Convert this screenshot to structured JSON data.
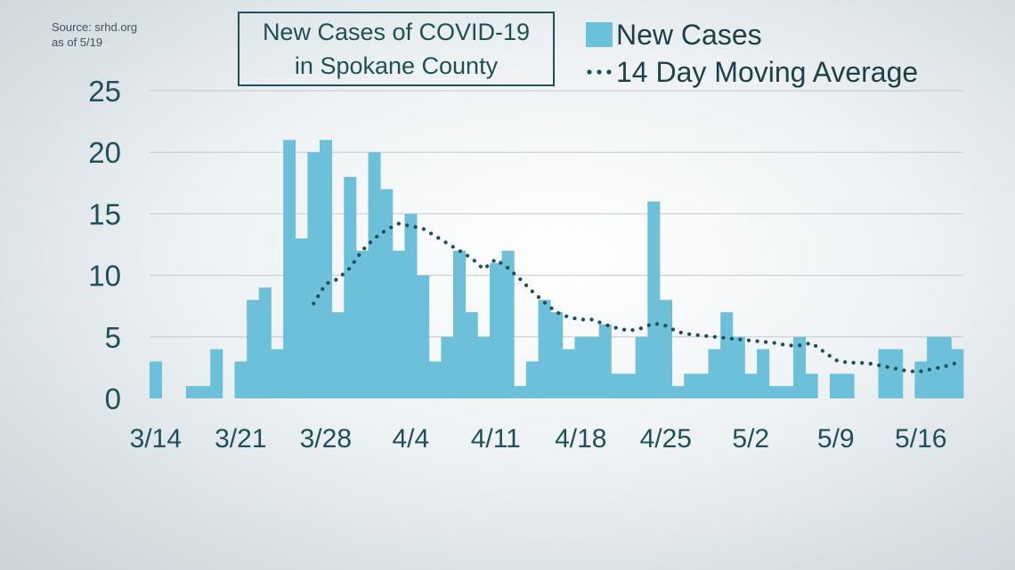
{
  "source": {
    "line1": "Source: srhd.org",
    "line2": "as of 5/19"
  },
  "title": {
    "line1": "New Cases of COVID-19",
    "line2": "in Spokane County"
  },
  "legend": {
    "bars": "New Cases",
    "line": "14 Day Moving Average"
  },
  "colors": {
    "bar": "#6dc0da",
    "line": "#1d4f58",
    "text": "#1f4f5a",
    "grid": "#c4ccd0"
  },
  "chart_data": {
    "type": "bar",
    "ylim": [
      0,
      25
    ],
    "yticks": [
      0,
      5,
      10,
      15,
      20,
      25
    ],
    "xtick_labels": [
      "3/14",
      "3/21",
      "3/28",
      "4/4",
      "4/11",
      "4/18",
      "4/25",
      "5/2",
      "5/9",
      "5/16"
    ],
    "x": [
      "3/14",
      "3/15",
      "3/16",
      "3/17",
      "3/18",
      "3/19",
      "3/20",
      "3/21",
      "3/22",
      "3/23",
      "3/24",
      "3/25",
      "3/26",
      "3/27",
      "3/28",
      "3/29",
      "3/30",
      "3/31",
      "4/1",
      "4/2",
      "4/3",
      "4/4",
      "4/5",
      "4/6",
      "4/7",
      "4/8",
      "4/9",
      "4/10",
      "4/11",
      "4/12",
      "4/13",
      "4/14",
      "4/15",
      "4/16",
      "4/17",
      "4/18",
      "4/19",
      "4/20",
      "4/21",
      "4/22",
      "4/23",
      "4/24",
      "4/25",
      "4/26",
      "4/27",
      "4/28",
      "4/29",
      "4/30",
      "5/1",
      "5/2",
      "5/3",
      "5/4",
      "5/5",
      "5/6",
      "5/7",
      "5/8",
      "5/9",
      "5/10",
      "5/11",
      "5/12",
      "5/13",
      "5/14",
      "5/15",
      "5/16",
      "5/17",
      "5/18",
      "5/19"
    ],
    "series": [
      {
        "name": "New Cases",
        "type": "bar",
        "values": [
          3,
          0,
          0,
          1,
          1,
          4,
          0,
          3,
          8,
          9,
          4,
          21,
          13,
          20,
          21,
          7,
          18,
          12,
          20,
          17,
          12,
          15,
          10,
          3,
          5,
          12,
          7,
          5,
          11,
          12,
          1,
          3,
          8,
          7,
          4,
          5,
          5,
          6,
          2,
          2,
          5,
          16,
          8,
          1,
          2,
          2,
          4,
          7,
          5,
          2,
          4,
          1,
          1,
          5,
          2,
          0,
          2,
          2,
          0,
          0,
          4,
          4,
          0,
          3,
          5,
          5,
          4
        ]
      },
      {
        "name": "14 Day Moving Average",
        "type": "line",
        "values": [
          null,
          null,
          null,
          null,
          null,
          null,
          null,
          null,
          null,
          null,
          null,
          null,
          null,
          7.7,
          9.3,
          9.7,
          10.6,
          12.0,
          13.0,
          13.7,
          14.2,
          14.0,
          13.8,
          13.2,
          12.6,
          12.0,
          11.4,
          10.5,
          11.3,
          10.6,
          9.7,
          8.7,
          7.8,
          7.0,
          6.6,
          6.4,
          6.4,
          6.0,
          5.7,
          5.5,
          5.7,
          6.1,
          5.9,
          5.4,
          5.2,
          5.1,
          5.0,
          4.9,
          4.8,
          4.7,
          4.6,
          4.5,
          4.3,
          4.3,
          4.5,
          3.8,
          3.1,
          2.9,
          2.9,
          2.8,
          2.6,
          2.4,
          2.2,
          2.2,
          2.4,
          2.6,
          2.9
        ]
      }
    ]
  }
}
